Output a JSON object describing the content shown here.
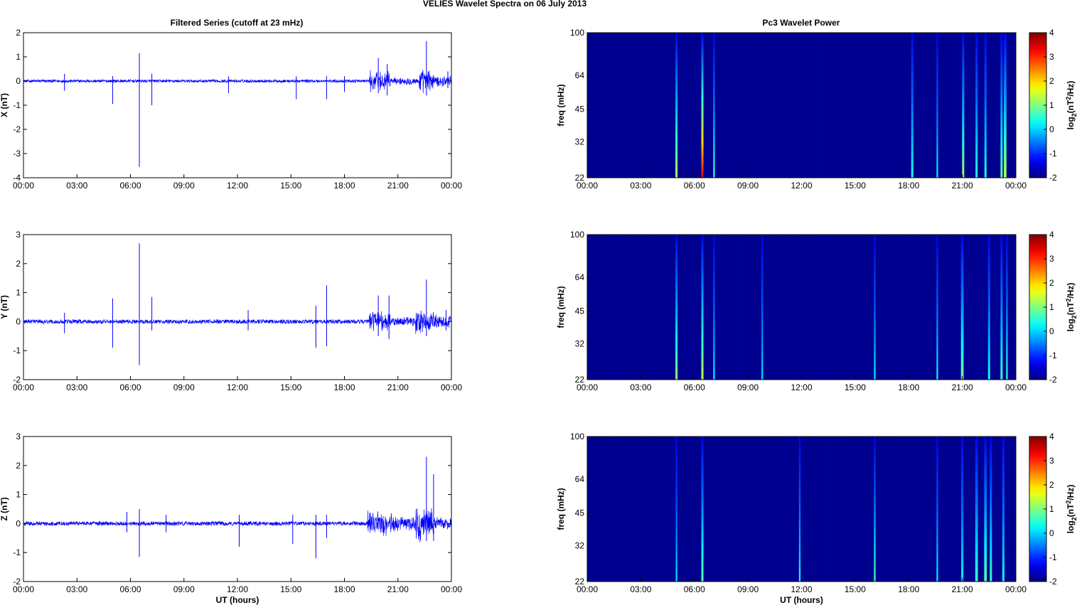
{
  "suptitle": "VELIES Wavelet Spectra on 06 July      2013",
  "left_title": "Filtered Series (cutoff at 23 mHz)",
  "right_title": "Pc3 Wavelet Power",
  "xlabel": "UT (hours)",
  "freq_label": "freq (mHz)",
  "colorbar_label": "log2(nT2/Hz)",
  "colors": {
    "trace": "#0000ff",
    "background": "#00008f"
  },
  "chart_data": [
    {
      "type": "line",
      "title": "Filtered Series (cutoff at 23 mHz)",
      "ylabel": "X (nT)",
      "xlabel": "",
      "xticks": [
        "00:00",
        "03:00",
        "06:00",
        "09:00",
        "12:00",
        "15:00",
        "18:00",
        "21:00",
        "00:00"
      ],
      "xlim": [
        0,
        24
      ],
      "ylim": [
        -4,
        2
      ],
      "yticks": [
        -4,
        -3,
        -2,
        -1,
        0,
        1,
        2
      ],
      "noise_amplitude": 0.06,
      "burst_envelope": [
        [
          19.4,
          20.6,
          0.5
        ],
        [
          20.6,
          22.2,
          0.18
        ],
        [
          22.2,
          23.0,
          0.55
        ],
        [
          23.0,
          24,
          0.25
        ]
      ],
      "spikes": [
        [
          2.3,
          0.3,
          -0.4
        ],
        [
          5.0,
          0.2,
          -0.95
        ],
        [
          6.5,
          1.15,
          -3.55
        ],
        [
          7.2,
          0.3,
          -1.0
        ],
        [
          11.5,
          0.2,
          -0.5
        ],
        [
          15.3,
          0.2,
          -0.75
        ],
        [
          17.0,
          0.2,
          -0.75
        ],
        [
          18.0,
          0.2,
          -0.45
        ],
        [
          19.9,
          0.95,
          -0.5
        ],
        [
          20.4,
          0.7,
          -0.6
        ],
        [
          22.6,
          1.65,
          -0.6
        ],
        [
          23.8,
          0.4,
          -0.3
        ]
      ]
    },
    {
      "type": "line",
      "title": "",
      "ylabel": "Y (nT)",
      "xlabel": "",
      "xticks": [
        "00:00",
        "03:00",
        "06:00",
        "09:00",
        "12:00",
        "15:00",
        "18:00",
        "21:00",
        "00:00"
      ],
      "xlim": [
        0,
        24
      ],
      "ylim": [
        -2,
        3
      ],
      "yticks": [
        -2,
        -1,
        0,
        1,
        2,
        3
      ],
      "noise_amplitude": 0.07,
      "burst_envelope": [
        [
          19.4,
          20.6,
          0.45
        ],
        [
          20.6,
          22.0,
          0.18
        ],
        [
          22.0,
          23.0,
          0.5
        ],
        [
          23.0,
          24,
          0.25
        ]
      ],
      "spikes": [
        [
          2.3,
          0.3,
          -0.4
        ],
        [
          5.0,
          0.8,
          -0.9
        ],
        [
          6.5,
          2.7,
          -1.5
        ],
        [
          7.2,
          0.85,
          -0.3
        ],
        [
          12.6,
          0.4,
          -0.3
        ],
        [
          16.4,
          0.55,
          -0.9
        ],
        [
          17.0,
          1.25,
          -0.85
        ],
        [
          19.9,
          0.9,
          -0.5
        ],
        [
          20.5,
          0.9,
          -0.6
        ],
        [
          22.6,
          1.45,
          -0.5
        ],
        [
          23.7,
          0.4,
          -0.3
        ]
      ]
    },
    {
      "type": "line",
      "title": "",
      "ylabel": "Z (nT)",
      "xlabel": "UT (hours)",
      "xticks": [
        "00:00",
        "03:00",
        "06:00",
        "09:00",
        "12:00",
        "15:00",
        "18:00",
        "21:00",
        "00:00"
      ],
      "xlim": [
        0,
        24
      ],
      "ylim": [
        -2,
        3
      ],
      "yticks": [
        -2,
        -1,
        0,
        1,
        2,
        3
      ],
      "noise_amplitude": 0.07,
      "burst_envelope": [
        [
          19.3,
          20.8,
          0.45
        ],
        [
          20.8,
          22.0,
          0.3
        ],
        [
          22.0,
          23.0,
          0.7
        ],
        [
          23.0,
          24,
          0.25
        ]
      ],
      "spikes": [
        [
          5.8,
          0.4,
          -0.3
        ],
        [
          6.5,
          0.5,
          -1.15
        ],
        [
          8.0,
          0.3,
          -0.3
        ],
        [
          12.1,
          0.3,
          -0.8
        ],
        [
          15.1,
          0.3,
          -0.7
        ],
        [
          16.4,
          0.3,
          -1.2
        ],
        [
          17.0,
          0.3,
          -0.5
        ],
        [
          22.6,
          2.3,
          -0.6
        ],
        [
          23.0,
          1.7,
          -0.6
        ]
      ]
    },
    {
      "type": "heatmap",
      "title": "Pc3 Wavelet Power",
      "ylabel": "freq (mHz)",
      "xlabel": "",
      "xticks": [
        "00:00",
        "03:00",
        "06:00",
        "09:00",
        "12:00",
        "15:00",
        "18:00",
        "21:00",
        "00:00"
      ],
      "xlim": [
        0,
        24
      ],
      "yticks": [
        22,
        32,
        45,
        64,
        100
      ],
      "ylim": [
        22,
        100
      ],
      "y_scale": "log",
      "colorbar": {
        "label": "log2(nT2/Hz)",
        "ticks": [
          -2,
          -1,
          0,
          1,
          2,
          3,
          4
        ],
        "range": [
          -2,
          4
        ],
        "colormap": "jet"
      },
      "features": [
        [
          5.0,
          0.2,
          1.4
        ],
        [
          6.45,
          0.2,
          3.4
        ],
        [
          7.1,
          0.15,
          0.6
        ],
        [
          18.2,
          0.2,
          0.4
        ],
        [
          19.6,
          0.15,
          0.2
        ],
        [
          21.05,
          0.2,
          1.2
        ],
        [
          21.8,
          0.2,
          0.5
        ],
        [
          22.3,
          0.2,
          0.4
        ],
        [
          23.2,
          0.2,
          0.8
        ],
        [
          23.4,
          0.25,
          1.3
        ]
      ]
    },
    {
      "type": "heatmap",
      "title": "",
      "ylabel": "freq (mHz)",
      "xlabel": "",
      "xticks": [
        "00:00",
        "03:00",
        "06:00",
        "09:00",
        "12:00",
        "15:00",
        "18:00",
        "21:00",
        "00:00"
      ],
      "xlim": [
        0,
        24
      ],
      "yticks": [
        22,
        32,
        45,
        64,
        100
      ],
      "ylim": [
        22,
        100
      ],
      "y_scale": "log",
      "colorbar": {
        "label": "log2(nT2/Hz)",
        "ticks": [
          -2,
          -1,
          0,
          1,
          2,
          3,
          4
        ],
        "range": [
          -2,
          4
        ],
        "colormap": "jet"
      },
      "features": [
        [
          5.0,
          0.2,
          1.1
        ],
        [
          6.45,
          0.2,
          1.4
        ],
        [
          7.1,
          0.15,
          0.2
        ],
        [
          9.8,
          0.15,
          0.1
        ],
        [
          16.1,
          0.15,
          0.2
        ],
        [
          19.6,
          0.15,
          0.3
        ],
        [
          21.0,
          0.25,
          0.9
        ],
        [
          22.5,
          0.2,
          0.3
        ],
        [
          23.2,
          0.2,
          0.6
        ],
        [
          23.5,
          0.15,
          0.5
        ]
      ]
    },
    {
      "type": "heatmap",
      "title": "",
      "ylabel": "freq (mHz)",
      "xlabel": "UT (hours)",
      "xticks": [
        "00:00",
        "03:00",
        "06:00",
        "09:00",
        "12:00",
        "15:00",
        "18:00",
        "21:00",
        "00:00"
      ],
      "xlim": [
        0,
        24
      ],
      "yticks": [
        22,
        32,
        45,
        64,
        100
      ],
      "ylim": [
        22,
        100
      ],
      "y_scale": "log",
      "colorbar": {
        "label": "log2(nT2/Hz)",
        "ticks": [
          -2,
          -1,
          0,
          1,
          2,
          3,
          4
        ],
        "range": [
          -2,
          4
        ],
        "colormap": "jet"
      },
      "features": [
        [
          5.0,
          0.15,
          0.1
        ],
        [
          6.45,
          0.2,
          0.8
        ],
        [
          11.9,
          0.15,
          0.3
        ],
        [
          16.1,
          0.15,
          0.7
        ],
        [
          19.6,
          0.15,
          0.2
        ],
        [
          21.0,
          0.2,
          0.3
        ],
        [
          21.8,
          0.25,
          0.6
        ],
        [
          22.3,
          0.25,
          0.8
        ],
        [
          22.6,
          0.2,
          0.6
        ],
        [
          23.3,
          0.2,
          0.3
        ]
      ]
    }
  ]
}
